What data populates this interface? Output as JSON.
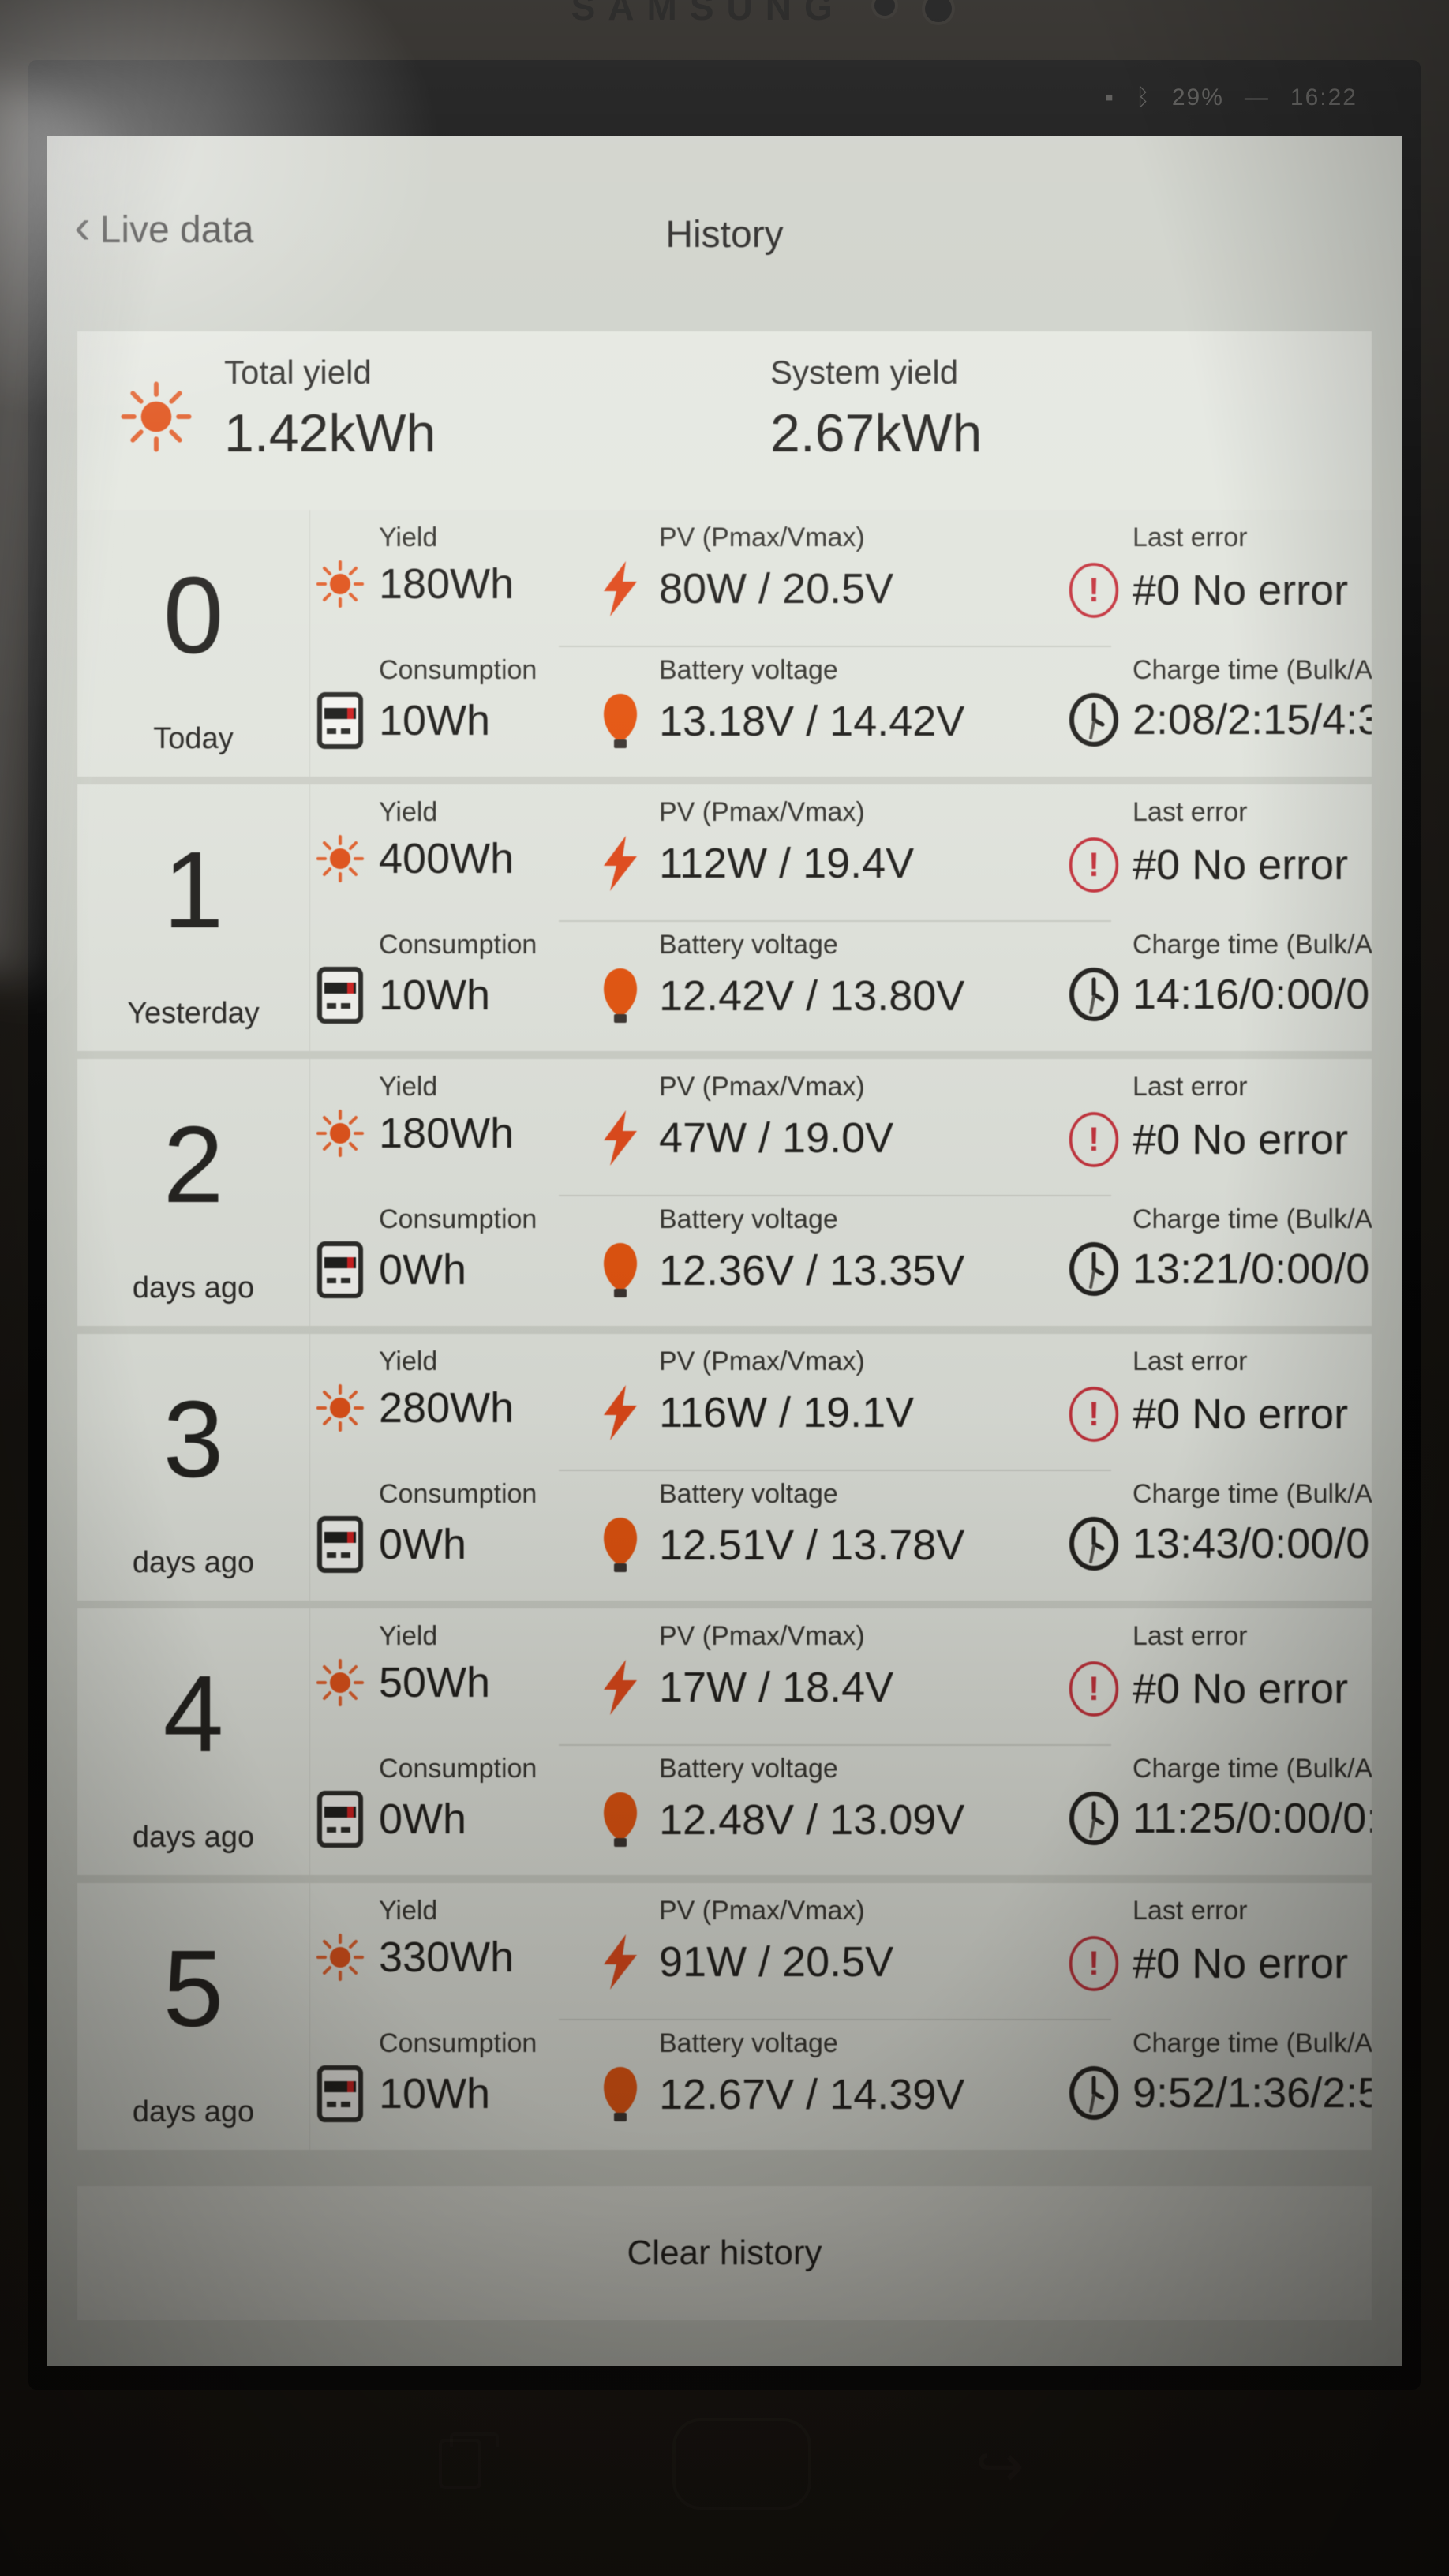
{
  "device": {
    "brand": "SAMSUNG",
    "statusbar": {
      "battery": "29%",
      "time": "16:22",
      "bluetooth_icon": "bluetooth-icon"
    }
  },
  "header": {
    "back_label": "Live data",
    "title": "History"
  },
  "summary": {
    "total_yield_label": "Total yield",
    "total_yield_value": "1.42kWh",
    "system_yield_label": "System yield",
    "system_yield_value": "2.67kWh"
  },
  "labels": {
    "yield": "Yield",
    "consumption": "Consumption",
    "pv": "PV (Pmax/Vmax)",
    "battery": "Battery voltage",
    "last_error": "Last error",
    "charge_time": "Charge time (Bulk/A"
  },
  "icons": {
    "yield": "sun-icon",
    "consumption": "meter-icon",
    "pv": "lightning-icon",
    "battery": "bulb-icon",
    "last_error": "alert-circle-icon",
    "charge_time": "clock-icon",
    "back": "chevron-left-icon"
  },
  "colors": {
    "accent_orange": "#e0521a",
    "error_red": "#c4323c",
    "text_dark": "#23221f"
  },
  "rows": [
    {
      "day": "0",
      "day_label": "Today",
      "yield": "180Wh",
      "consumption": "10Wh",
      "pv": "80W / 20.5V",
      "battery": "13.18V / 14.42V",
      "error": "#0 No error",
      "charge_time": "2:08/2:15/4:3"
    },
    {
      "day": "1",
      "day_label": "Yesterday",
      "yield": "400Wh",
      "consumption": "10Wh",
      "pv": "112W / 19.4V",
      "battery": "12.42V / 13.80V",
      "error": "#0 No error",
      "charge_time": "14:16/0:00/0:"
    },
    {
      "day": "2",
      "day_label": "days ago",
      "yield": "180Wh",
      "consumption": "0Wh",
      "pv": "47W / 19.0V",
      "battery": "12.36V / 13.35V",
      "error": "#0 No error",
      "charge_time": "13:21/0:00/0:"
    },
    {
      "day": "3",
      "day_label": "days ago",
      "yield": "280Wh",
      "consumption": "0Wh",
      "pv": "116W / 19.1V",
      "battery": "12.51V / 13.78V",
      "error": "#0 No error",
      "charge_time": "13:43/0:00/0:"
    },
    {
      "day": "4",
      "day_label": "days ago",
      "yield": "50Wh",
      "consumption": "0Wh",
      "pv": "17W / 18.4V",
      "battery": "12.48V / 13.09V",
      "error": "#0 No error",
      "charge_time": "11:25/0:00/0:"
    },
    {
      "day": "5",
      "day_label": "days ago",
      "yield": "330Wh",
      "consumption": "10Wh",
      "pv": "91W / 20.5V",
      "battery": "12.67V / 14.39V",
      "error": "#0 No error",
      "charge_time": "9:52/1:36/2:5"
    }
  ],
  "footer": {
    "clear_label": "Clear history"
  }
}
